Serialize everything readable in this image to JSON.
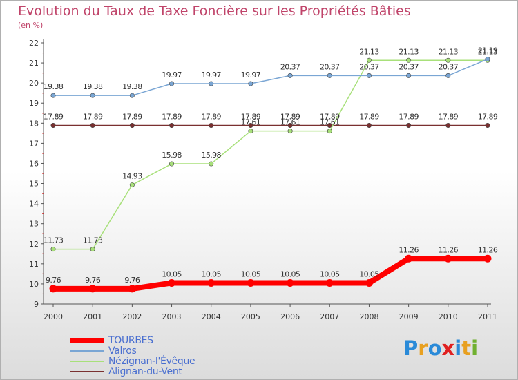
{
  "title": "Evolution du Taux de Taxe Foncière sur les Propriétés Bâties",
  "subtitle": "(en %)",
  "logo": {
    "letters": [
      "P",
      "r",
      "o",
      "x",
      "i",
      "t",
      "i"
    ],
    "colors": [
      "#2a8ad8",
      "#e8a020",
      "#2a8ad8",
      "#e02020",
      "#2a8ad8",
      "#e8a020",
      "#70b030"
    ]
  },
  "chart_data": {
    "type": "line",
    "x": [
      "2000",
      "2001",
      "2002",
      "2003",
      "2004",
      "2005",
      "2006",
      "2007",
      "2008",
      "2009",
      "2010",
      "2011"
    ],
    "ylim": [
      9,
      22
    ],
    "yticks": [
      "9",
      "10",
      "11",
      "12",
      "13",
      "14",
      "15",
      "16",
      "17",
      "18",
      "19",
      "20",
      "21",
      "22"
    ],
    "grid": false,
    "legend_position": "bottom-left",
    "series": [
      {
        "name": "TOURBES",
        "color": "#ff0000",
        "values": [
          9.76,
          9.76,
          9.76,
          10.05,
          10.05,
          10.05,
          10.05,
          10.05,
          10.05,
          11.26,
          11.26,
          11.26
        ],
        "labels": [
          "9.76",
          "9.76",
          "9.76",
          "10.05",
          "10.05",
          "10.05",
          "10.05",
          "10.05",
          "10.05",
          "11.26",
          "11.26",
          "11.26"
        ]
      },
      {
        "name": "Valros",
        "color": "#7aa6d4",
        "values": [
          19.38,
          19.38,
          19.38,
          19.97,
          19.97,
          19.97,
          20.37,
          20.37,
          20.37,
          20.37,
          20.37,
          21.19
        ],
        "labels": [
          "19.38",
          "19.38",
          "19.38",
          "19.97",
          "19.97",
          "19.97",
          "20.37",
          "20.37",
          "20.37",
          "20.37",
          "20.37",
          "21.19"
        ]
      },
      {
        "name": "Nézignan-l'Évêque",
        "color": "#a8e07a",
        "values": [
          11.73,
          11.73,
          14.93,
          15.98,
          15.98,
          17.61,
          17.61,
          17.61,
          21.13,
          21.13,
          21.13,
          21.13
        ],
        "labels": [
          "11.73",
          "11.73",
          "14.93",
          "15.98",
          "15.98",
          "17.61",
          "17.61",
          "17.61",
          "21.13",
          "21.13",
          "21.13",
          "21.13"
        ]
      },
      {
        "name": "Alignan-du-Vent",
        "color": "#7a3030",
        "values": [
          17.89,
          17.89,
          17.89,
          17.89,
          17.89,
          17.89,
          17.89,
          17.89,
          17.89,
          17.89,
          17.89,
          17.89
        ],
        "labels": [
          "17.89",
          "17.89",
          "17.89",
          "17.89",
          "17.89",
          "17.89",
          "17.89",
          "17.89",
          "17.89",
          "17.89",
          "17.89",
          "17.89"
        ]
      }
    ]
  }
}
